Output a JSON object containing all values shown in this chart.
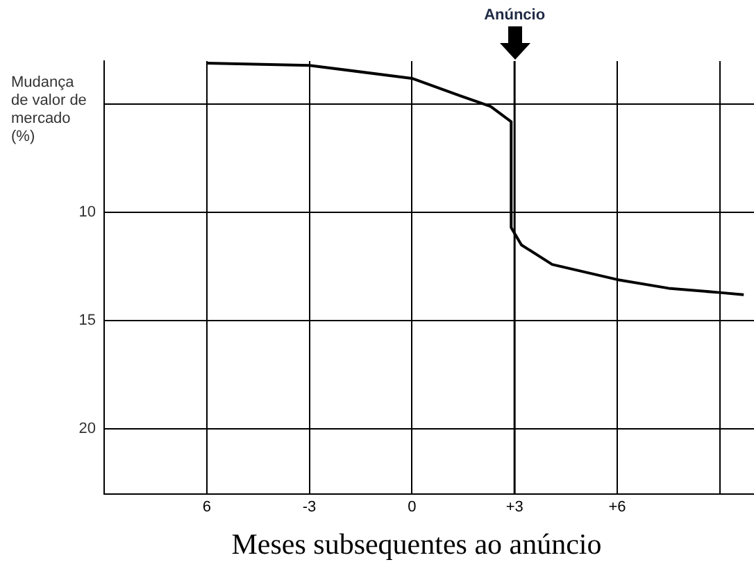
{
  "chart_data": {
    "type": "line",
    "ylabel": "Mudança de valor de mercado (%)",
    "xlabel": "Meses subsequentes ao anúncio",
    "series": [
      {
        "color": "#000000",
        "x": [
          -6,
          -3,
          0,
          1.4,
          2.3,
          2.9,
          2.9,
          3.2,
          4.1,
          6,
          7.5,
          9,
          9.7
        ],
        "values": [
          3.1,
          3.2,
          3.8,
          4.6,
          5.1,
          5.8,
          10.7,
          11.5,
          12.4,
          13.1,
          13.5,
          13.7,
          13.8
        ]
      }
    ],
    "xlim": [
      -9,
      10
    ],
    "xticks": [
      {
        "value": -6,
        "label": "6"
      },
      -3,
      0,
      {
        "value": 3,
        "label": "+3"
      },
      {
        "value": 6,
        "label": "+6"
      },
      {
        "value": 9,
        "label": null
      }
    ],
    "ylim": [
      23,
      3
    ],
    "yticks": [
      {
        "value": 5,
        "label": null
      },
      10,
      15,
      20
    ],
    "ref_lines": [
      {
        "axis": "x",
        "value": 3,
        "label": "Anúncio",
        "color": "#000000"
      }
    ],
    "grid": true,
    "legend": false,
    "marker": "none",
    "line_style": "solid"
  }
}
